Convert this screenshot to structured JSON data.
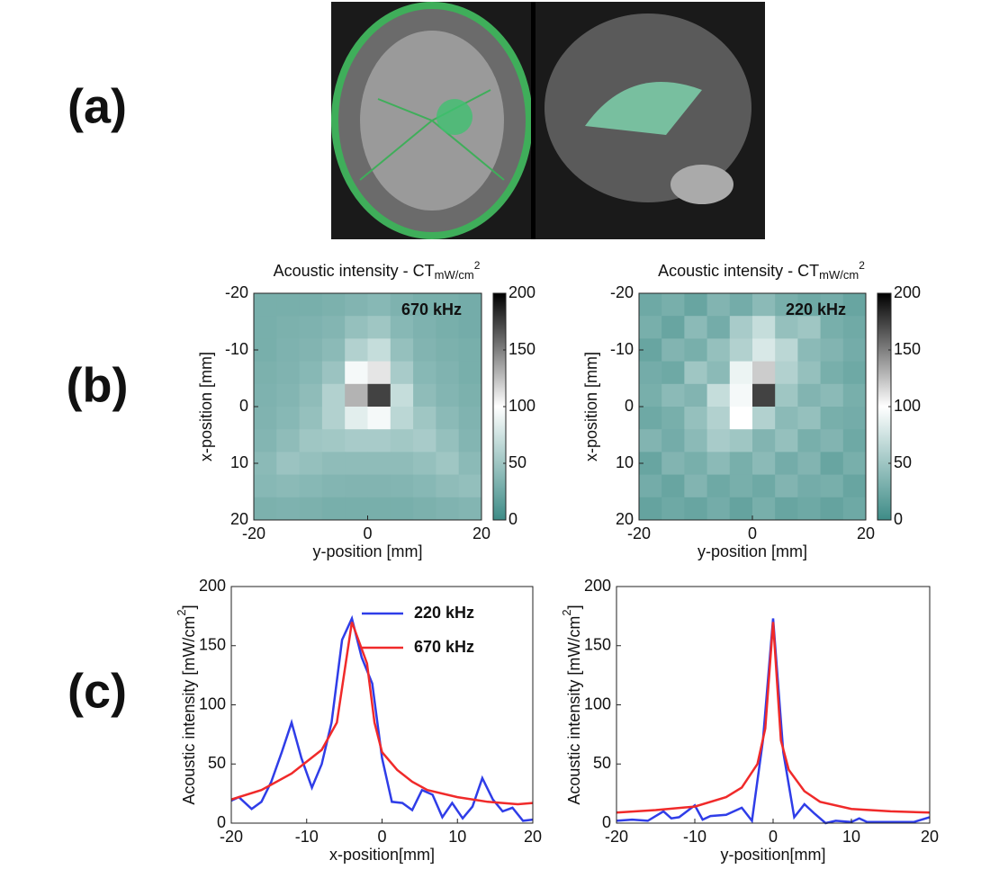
{
  "panel_labels": [
    "(a)",
    "(b)",
    "(c)"
  ],
  "chart_data": [
    {
      "type": "heatmap",
      "title": "Acoustic intensity - CT",
      "title_subscript": "mW/cm",
      "title_superscript": "2",
      "annotation": "670 kHz",
      "xlabel": "y-position [mm]",
      "ylabel": "x-position [mm]",
      "xlim": [
        -20,
        20
      ],
      "ylim": [
        20,
        -20
      ],
      "xticks": [
        -20,
        0,
        20
      ],
      "yticks": [
        -20,
        -10,
        0,
        10,
        20
      ],
      "zlim": [
        0,
        200
      ],
      "zticks": [
        0,
        50,
        100,
        150,
        200
      ],
      "colormap": [
        "#3e8c87",
        "#ffffff",
        "#000000"
      ],
      "z": [
        [
          30,
          30,
          30,
          32,
          35,
          38,
          33,
          30,
          30,
          28
        ],
        [
          30,
          32,
          33,
          36,
          45,
          50,
          38,
          33,
          30,
          28
        ],
        [
          30,
          33,
          35,
          40,
          60,
          70,
          45,
          35,
          32,
          30
        ],
        [
          32,
          34,
          38,
          48,
          95,
          110,
          55,
          38,
          34,
          30
        ],
        [
          33,
          36,
          42,
          60,
          130,
          174,
          70,
          42,
          36,
          32
        ],
        [
          34,
          38,
          45,
          60,
          85,
          95,
          65,
          50,
          40,
          34
        ],
        [
          36,
          42,
          50,
          52,
          55,
          55,
          52,
          55,
          45,
          36
        ],
        [
          40,
          48,
          45,
          42,
          42,
          42,
          42,
          45,
          50,
          40
        ],
        [
          38,
          40,
          38,
          36,
          35,
          35,
          36,
          38,
          42,
          44
        ],
        [
          32,
          33,
          32,
          30,
          30,
          30,
          30,
          32,
          34,
          36
        ]
      ]
    },
    {
      "type": "heatmap",
      "title": "Acoustic intensity - CT",
      "title_subscript": "mW/cm",
      "title_superscript": "2",
      "annotation": "220 kHz",
      "xlabel": "y-position [mm]",
      "ylabel": "x-position [mm]",
      "xlim": [
        -20,
        20
      ],
      "ylim": [
        20,
        -20
      ],
      "xticks": [
        -20,
        0,
        20
      ],
      "yticks": [
        -20,
        -10,
        0,
        10,
        20
      ],
      "zlim": [
        0,
        200
      ],
      "zticks": [
        0,
        50,
        100,
        150,
        200
      ],
      "colormap": [
        "#3e8c87",
        "#ffffff",
        "#000000"
      ],
      "z": [
        [
          25,
          30,
          22,
          35,
          28,
          40,
          30,
          25,
          28,
          22
        ],
        [
          30,
          22,
          40,
          28,
          55,
          70,
          45,
          50,
          30,
          26
        ],
        [
          22,
          35,
          30,
          45,
          60,
          80,
          65,
          40,
          35,
          28
        ],
        [
          28,
          25,
          50,
          40,
          90,
          120,
          60,
          45,
          30,
          25
        ],
        [
          30,
          40,
          35,
          70,
          95,
          174,
          50,
          35,
          40,
          30
        ],
        [
          25,
          30,
          45,
          60,
          100,
          60,
          40,
          45,
          30,
          28
        ],
        [
          35,
          28,
          40,
          55,
          50,
          35,
          45,
          30,
          35,
          25
        ],
        [
          22,
          35,
          30,
          40,
          30,
          40,
          28,
          35,
          22,
          30
        ],
        [
          28,
          22,
          35,
          25,
          30,
          25,
          35,
          28,
          30,
          22
        ],
        [
          20,
          25,
          22,
          28,
          20,
          30,
          22,
          25,
          20,
          25
        ]
      ]
    },
    {
      "type": "line",
      "xlabel": "x-position[mm]",
      "ylabel": "Acoustic intensity [mW/cm",
      "ylabel_superscript": "2",
      "ylabel_suffix": "]",
      "xlim": [
        -20,
        20
      ],
      "ylim": [
        0,
        200
      ],
      "xticks": [
        -20,
        -10,
        0,
        10,
        20
      ],
      "yticks": [
        0,
        50,
        100,
        150,
        200
      ],
      "legend": "upper right",
      "series": [
        {
          "name": "220 kHz",
          "color": "#2f3de8",
          "x": [
            -20,
            -19,
            -17.3,
            -16,
            -14.7,
            -13.3,
            -12,
            -10.7,
            -9.3,
            -8,
            -6.7,
            -5.3,
            -4,
            -2.7,
            -1.3,
            0,
            1.3,
            2.7,
            4,
            5.3,
            6.7,
            8,
            9.3,
            10.7,
            12,
            13.3,
            14.7,
            16,
            17.3,
            18.7,
            20
          ],
          "values": [
            19,
            22,
            12,
            18,
            35,
            60,
            85,
            55,
            30,
            50,
            85,
            155,
            173,
            140,
            118,
            55,
            18,
            17,
            11,
            28,
            24,
            5,
            17,
            4,
            14,
            38,
            20,
            10,
            13,
            2,
            3
          ]
        },
        {
          "name": "670 kHz",
          "color": "#f02a2a",
          "x": [
            -20,
            -16,
            -12,
            -8,
            -6,
            -4,
            -2,
            -1,
            0,
            2,
            4,
            6,
            10,
            14,
            18,
            20
          ],
          "values": [
            20,
            28,
            42,
            62,
            85,
            170,
            135,
            85,
            60,
            45,
            35,
            28,
            22,
            18,
            16,
            17
          ]
        }
      ]
    },
    {
      "type": "line",
      "xlabel": "y-position[mm]",
      "ylabel": "Acoustic intensity [mW/cm",
      "ylabel_superscript": "2",
      "ylabel_suffix": "]",
      "xlim": [
        -20,
        20
      ],
      "ylim": [
        0,
        200
      ],
      "xticks": [
        -20,
        -10,
        0,
        10,
        20
      ],
      "yticks": [
        0,
        50,
        100,
        150,
        200
      ],
      "series": [
        {
          "color": "#2f3de8",
          "x": [
            -20,
            -18,
            -16,
            -14,
            -13,
            -12,
            -10,
            -9,
            -8,
            -6,
            -4,
            -2.7,
            -1.3,
            0,
            1.3,
            2.7,
            4,
            5.3,
            6.7,
            8,
            10,
            11,
            12,
            14,
            16,
            18,
            20
          ],
          "values": [
            2,
            3,
            2,
            10,
            4,
            5,
            15,
            3,
            6,
            7,
            13,
            2,
            70,
            173,
            60,
            5,
            16,
            8,
            0,
            2,
            1,
            4,
            1,
            1,
            1,
            1,
            5
          ]
        },
        {
          "color": "#f02a2a",
          "x": [
            -20,
            -15,
            -10,
            -6,
            -4,
            -2,
            -1,
            0,
            1,
            2,
            4,
            6,
            10,
            15,
            20
          ],
          "values": [
            9,
            11,
            14,
            22,
            30,
            50,
            80,
            170,
            70,
            45,
            27,
            18,
            12,
            10,
            9
          ]
        }
      ]
    }
  ]
}
